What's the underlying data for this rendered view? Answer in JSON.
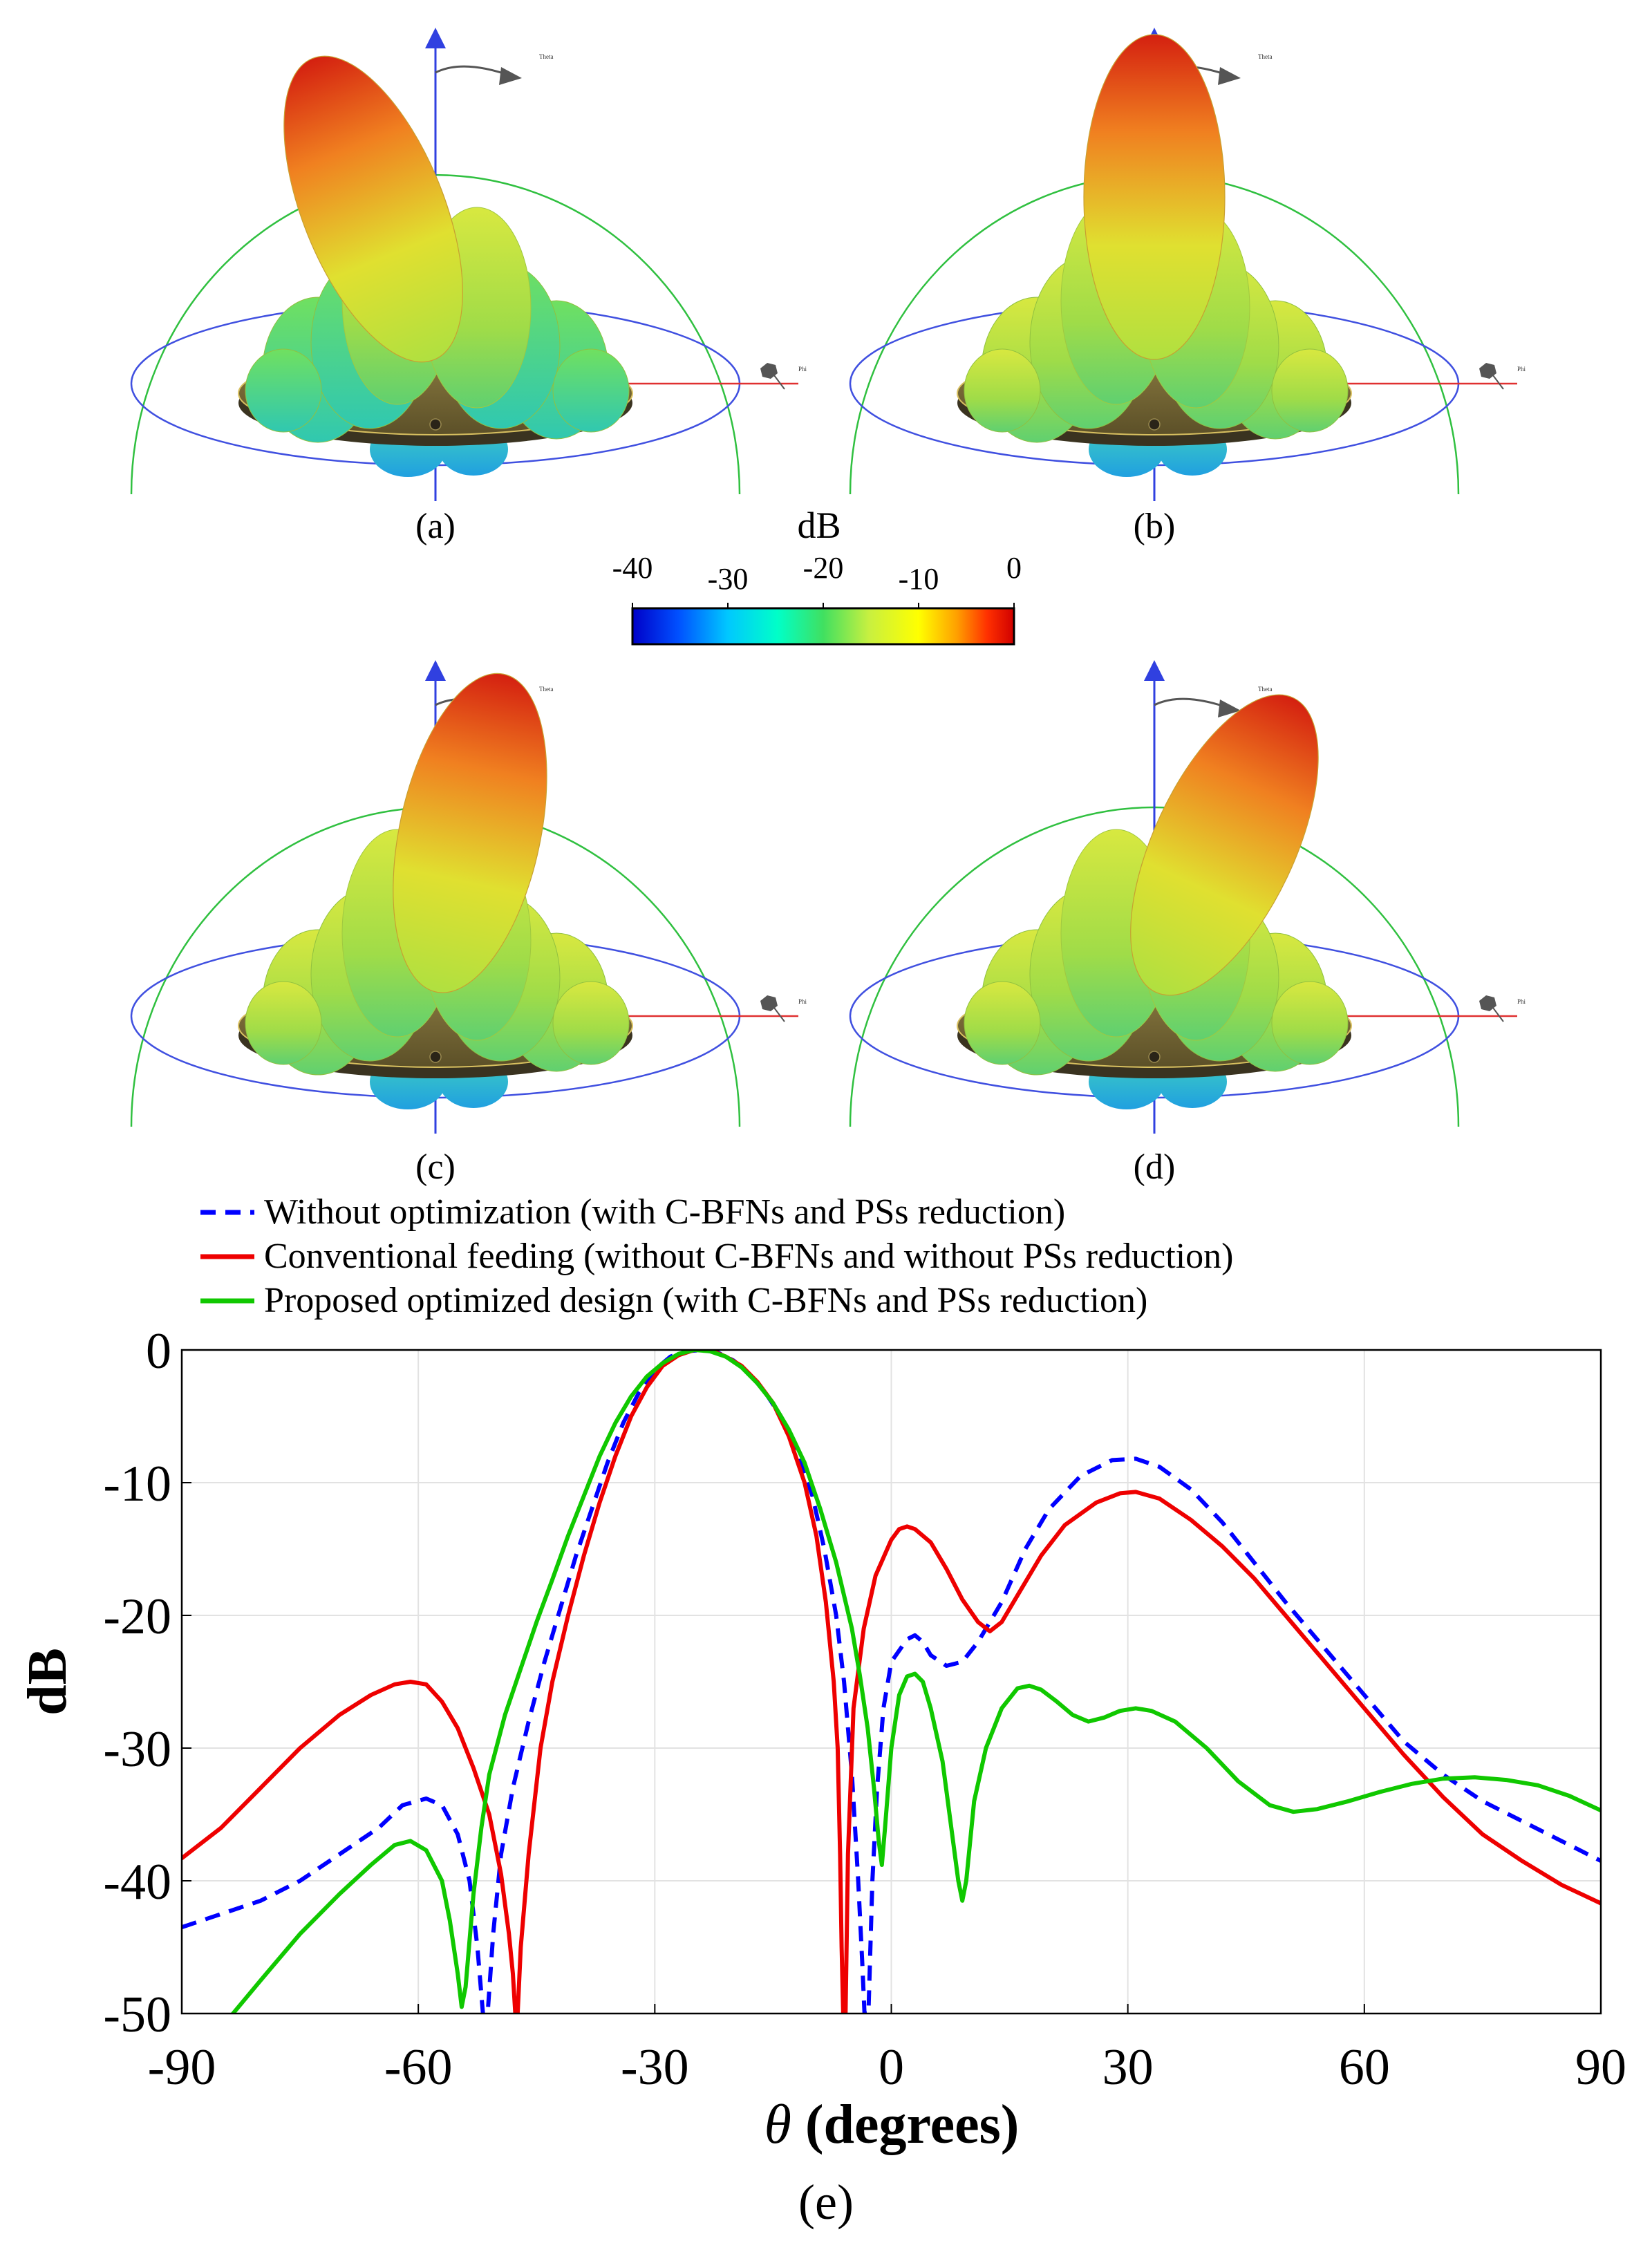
{
  "panels": [
    {
      "id": "a",
      "label": "(a)",
      "beam_direction_deg": -22
    },
    {
      "id": "b",
      "label": "(b)",
      "beam_direction_deg": 0
    },
    {
      "id": "c",
      "label": "(c)",
      "beam_direction_deg": 12
    },
    {
      "id": "d",
      "label": "(d)",
      "beam_direction_deg": 25
    }
  ],
  "axis_labels": {
    "theta_small": "Theta",
    "phi_small": "Phi"
  },
  "colorbar": {
    "title": "dB",
    "ticks": [
      "-40",
      "-30",
      "-20",
      "-10",
      "0"
    ],
    "tick_values": [
      -40,
      -30,
      -20,
      -10,
      0
    ],
    "range": [
      -40,
      0
    ],
    "colors": [
      "#0000c8",
      "#0050ff",
      "#00c8ff",
      "#00ffc8",
      "#40e060",
      "#c8f040",
      "#ffff00",
      "#ffa000",
      "#ff3000",
      "#d00000"
    ]
  },
  "chart_data": {
    "type": "line",
    "panel_label": "(e)",
    "xlabel_symbol": "θ",
    "xlabel_rest": " (degrees)",
    "ylabel": "dB",
    "xlim": [
      -90,
      90
    ],
    "ylim": [
      -50,
      0
    ],
    "xticks": [
      -90,
      -60,
      -30,
      0,
      30,
      60,
      90
    ],
    "yticks": [
      0,
      -10,
      -20,
      -30,
      -40,
      -50
    ],
    "grid": true,
    "legend_position": "top-left, above plot",
    "series": [
      {
        "name": "Without optimization (with C-BFNs and PSs reduction)",
        "color": "#0000ff",
        "style": "dashed",
        "points": [
          [
            -90,
            -43.5
          ],
          [
            -85,
            -42.5
          ],
          [
            -80,
            -41.5
          ],
          [
            -75,
            -40
          ],
          [
            -70,
            -38
          ],
          [
            -65,
            -36
          ],
          [
            -62,
            -34.3
          ],
          [
            -59,
            -33.8
          ],
          [
            -57,
            -34.3
          ],
          [
            -55,
            -36.5
          ],
          [
            -53.5,
            -40
          ],
          [
            -52.5,
            -45
          ],
          [
            -51.8,
            -50
          ],
          [
            -51.2,
            -50
          ],
          [
            -50.5,
            -44
          ],
          [
            -49.5,
            -38
          ],
          [
            -48,
            -33
          ],
          [
            -46,
            -28
          ],
          [
            -44,
            -23.5
          ],
          [
            -42,
            -19.5
          ],
          [
            -40,
            -15.5
          ],
          [
            -38,
            -12
          ],
          [
            -36,
            -8.5
          ],
          [
            -34,
            -5.5
          ],
          [
            -32,
            -3.2
          ],
          [
            -30,
            -1.5
          ],
          [
            -28,
            -0.5
          ],
          [
            -26,
            -0.1
          ],
          [
            -24,
            0
          ],
          [
            -22,
            -0.2
          ],
          [
            -20,
            -0.8
          ],
          [
            -18,
            -1.8
          ],
          [
            -16,
            -3.2
          ],
          [
            -14,
            -5
          ],
          [
            -12,
            -7.5
          ],
          [
            -10,
            -11
          ],
          [
            -8.5,
            -15
          ],
          [
            -7,
            -20
          ],
          [
            -6,
            -25
          ],
          [
            -5,
            -32
          ],
          [
            -4.2,
            -40
          ],
          [
            -3.7,
            -46
          ],
          [
            -3.4,
            -50
          ],
          [
            -2.9,
            -50
          ],
          [
            -2.4,
            -40
          ],
          [
            -1.8,
            -33
          ],
          [
            -1,
            -27
          ],
          [
            0,
            -23.5
          ],
          [
            2,
            -21.8
          ],
          [
            3,
            -21.5
          ],
          [
            4,
            -22
          ],
          [
            5,
            -23
          ],
          [
            7,
            -23.8
          ],
          [
            9,
            -23.5
          ],
          [
            11,
            -22
          ],
          [
            14,
            -19
          ],
          [
            17,
            -15
          ],
          [
            20,
            -12
          ],
          [
            24,
            -9.5
          ],
          [
            28,
            -8.3
          ],
          [
            31,
            -8.2
          ],
          [
            34,
            -8.8
          ],
          [
            38,
            -10.5
          ],
          [
            42,
            -13
          ],
          [
            46,
            -16
          ],
          [
            50,
            -19
          ],
          [
            55,
            -22.5
          ],
          [
            60,
            -26
          ],
          [
            65,
            -29.5
          ],
          [
            70,
            -32
          ],
          [
            75,
            -34
          ],
          [
            80,
            -35.5
          ],
          [
            85,
            -37
          ],
          [
            90,
            -38.5
          ]
        ]
      },
      {
        "name": "Conventional feeding (without C-BFNs and without PSs reduction)",
        "color": "#ee0000",
        "style": "solid",
        "points": [
          [
            -90,
            -38.3
          ],
          [
            -85,
            -36
          ],
          [
            -80,
            -33
          ],
          [
            -75,
            -30
          ],
          [
            -70,
            -27.5
          ],
          [
            -66,
            -26
          ],
          [
            -63,
            -25.2
          ],
          [
            -61,
            -25
          ],
          [
            -59,
            -25.2
          ],
          [
            -57,
            -26.5
          ],
          [
            -55,
            -28.5
          ],
          [
            -53,
            -31.5
          ],
          [
            -51,
            -35
          ],
          [
            -49.5,
            -39.5
          ],
          [
            -48.5,
            -44
          ],
          [
            -48,
            -47
          ],
          [
            -47.7,
            -50
          ],
          [
            -47.4,
            -50
          ],
          [
            -47,
            -45
          ],
          [
            -46,
            -38
          ],
          [
            -44.5,
            -30
          ],
          [
            -43,
            -25
          ],
          [
            -41,
            -20
          ],
          [
            -39,
            -15.5
          ],
          [
            -37,
            -11.5
          ],
          [
            -35,
            -8
          ],
          [
            -33,
            -5
          ],
          [
            -31,
            -2.8
          ],
          [
            -29,
            -1.2
          ],
          [
            -27,
            -0.4
          ],
          [
            -25,
            0
          ],
          [
            -23,
            0
          ],
          [
            -21,
            -0.5
          ],
          [
            -19,
            -1.2
          ],
          [
            -17,
            -2.4
          ],
          [
            -15,
            -4
          ],
          [
            -13,
            -6.5
          ],
          [
            -11,
            -10
          ],
          [
            -9.5,
            -14
          ],
          [
            -8.3,
            -19
          ],
          [
            -7.3,
            -25
          ],
          [
            -6.8,
            -30
          ],
          [
            -6.5,
            -38
          ],
          [
            -6.3,
            -45
          ],
          [
            -6.1,
            -50
          ],
          [
            -5.8,
            -50
          ],
          [
            -5.5,
            -38
          ],
          [
            -4.8,
            -27
          ],
          [
            -3.5,
            -21
          ],
          [
            -2,
            -17
          ],
          [
            0,
            -14.3
          ],
          [
            1,
            -13.5
          ],
          [
            2,
            -13.3
          ],
          [
            3,
            -13.5
          ],
          [
            5,
            -14.5
          ],
          [
            7,
            -16.5
          ],
          [
            9,
            -18.8
          ],
          [
            11,
            -20.5
          ],
          [
            12.5,
            -21.2
          ],
          [
            14,
            -20.5
          ],
          [
            16,
            -18.5
          ],
          [
            19,
            -15.5
          ],
          [
            22,
            -13.2
          ],
          [
            26,
            -11.5
          ],
          [
            29,
            -10.8
          ],
          [
            31,
            -10.7
          ],
          [
            34,
            -11.2
          ],
          [
            38,
            -12.8
          ],
          [
            42,
            -14.8
          ],
          [
            46,
            -17.2
          ],
          [
            50,
            -20
          ],
          [
            55,
            -23.5
          ],
          [
            60,
            -27
          ],
          [
            65,
            -30.5
          ],
          [
            70,
            -33.7
          ],
          [
            75,
            -36.5
          ],
          [
            80,
            -38.5
          ],
          [
            85,
            -40.3
          ],
          [
            90,
            -41.7
          ]
        ]
      },
      {
        "name": "Proposed optimized design (with C-BFNs and PSs reduction)",
        "color": "#10c800",
        "style": "solid",
        "points": [
          [
            -83.5,
            -50
          ],
          [
            -80,
            -47.5
          ],
          [
            -75,
            -44
          ],
          [
            -70,
            -41
          ],
          [
            -66,
            -38.8
          ],
          [
            -63,
            -37.3
          ],
          [
            -61,
            -37
          ],
          [
            -59,
            -37.7
          ],
          [
            -57,
            -40
          ],
          [
            -56,
            -43
          ],
          [
            -55,
            -47
          ],
          [
            -54.5,
            -49.5
          ],
          [
            -54,
            -48
          ],
          [
            -53,
            -41
          ],
          [
            -52,
            -36
          ],
          [
            -51,
            -32
          ],
          [
            -49,
            -27.5
          ],
          [
            -47,
            -24
          ],
          [
            -45,
            -20.5
          ],
          [
            -43,
            -17.3
          ],
          [
            -41,
            -14
          ],
          [
            -39,
            -11
          ],
          [
            -37,
            -8
          ],
          [
            -35,
            -5.5
          ],
          [
            -33,
            -3.5
          ],
          [
            -31,
            -2
          ],
          [
            -29,
            -1
          ],
          [
            -27,
            -0.3
          ],
          [
            -25,
            0
          ],
          [
            -23,
            -0.1
          ],
          [
            -21,
            -0.5
          ],
          [
            -19,
            -1.3
          ],
          [
            -17,
            -2.5
          ],
          [
            -15,
            -4
          ],
          [
            -13,
            -6
          ],
          [
            -11,
            -8.5
          ],
          [
            -9,
            -12
          ],
          [
            -7,
            -16
          ],
          [
            -5,
            -21
          ],
          [
            -4,
            -24.5
          ],
          [
            -3,
            -28.5
          ],
          [
            -2.2,
            -33
          ],
          [
            -1.6,
            -37
          ],
          [
            -1.2,
            -38.8
          ],
          [
            -0.8,
            -36
          ],
          [
            0,
            -30
          ],
          [
            1,
            -26
          ],
          [
            2,
            -24.6
          ],
          [
            3,
            -24.4
          ],
          [
            4,
            -25
          ],
          [
            5,
            -27
          ],
          [
            6.5,
            -31
          ],
          [
            7.5,
            -35.5
          ],
          [
            8.5,
            -40
          ],
          [
            9,
            -41.5
          ],
          [
            9.5,
            -40
          ],
          [
            10.5,
            -34
          ],
          [
            12,
            -30
          ],
          [
            14,
            -27
          ],
          [
            16,
            -25.5
          ],
          [
            17.5,
            -25.3
          ],
          [
            19,
            -25.6
          ],
          [
            21,
            -26.5
          ],
          [
            23,
            -27.5
          ],
          [
            25,
            -28
          ],
          [
            27,
            -27.7
          ],
          [
            29,
            -27.2
          ],
          [
            31,
            -27
          ],
          [
            33,
            -27.2
          ],
          [
            36,
            -28
          ],
          [
            40,
            -30
          ],
          [
            44,
            -32.5
          ],
          [
            48,
            -34.3
          ],
          [
            51,
            -34.8
          ],
          [
            54,
            -34.6
          ],
          [
            58,
            -34
          ],
          [
            62,
            -33.3
          ],
          [
            66,
            -32.7
          ],
          [
            70,
            -32.3
          ],
          [
            74,
            -32.2
          ],
          [
            78,
            -32.4
          ],
          [
            82,
            -32.8
          ],
          [
            86,
            -33.6
          ],
          [
            90,
            -34.7
          ]
        ]
      }
    ]
  }
}
